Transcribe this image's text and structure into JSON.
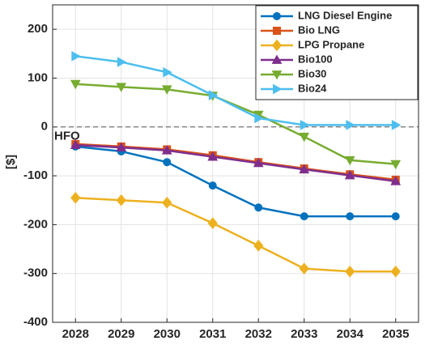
{
  "chart_data": {
    "type": "line",
    "y_label": "[$]",
    "annotation": "HFO",
    "reference_line": 0,
    "x": [
      2028,
      2029,
      2030,
      2031,
      2032,
      2033,
      2034,
      2035
    ],
    "xlim": [
      2027.5,
      2035.5
    ],
    "xticks": [
      2028,
      2029,
      2030,
      2031,
      2032,
      2033,
      2034,
      2035
    ],
    "ylim": [
      -400,
      250
    ],
    "yticks": [
      -400,
      -300,
      -200,
      -100,
      0,
      100,
      200
    ],
    "grid": true,
    "legend": "top-right",
    "series": [
      {
        "name": "LNG Diesel Engine",
        "color": "#0072BD",
        "marker": "circle",
        "values": [
          -40,
          -50,
          -72,
          -120,
          -165,
          -183,
          -183,
          -183
        ]
      },
      {
        "name": "Bio LNG",
        "color": "#D95319",
        "marker": "square",
        "values": [
          -35,
          -40,
          -46,
          -58,
          -72,
          -85,
          -97,
          -108
        ]
      },
      {
        "name": "LPG Propane",
        "color": "#EDB120",
        "marker": "diamond",
        "values": [
          -145,
          -150,
          -155,
          -197,
          -243,
          -290,
          -296,
          -296
        ]
      },
      {
        "name": "Bio100",
        "color": "#7E2F8E",
        "marker": "triangle-up",
        "values": [
          -37,
          -42,
          -48,
          -61,
          -74,
          -87,
          -99,
          -111
        ]
      },
      {
        "name": "Bio30",
        "color": "#77AC30",
        "marker": "triangle-down",
        "values": [
          88,
          82,
          77,
          64,
          25,
          -20,
          -68,
          -76
        ]
      },
      {
        "name": "Bio24",
        "color": "#4DBEEE",
        "marker": "triangle-right",
        "values": [
          145,
          133,
          112,
          65,
          18,
          4,
          4,
          4
        ]
      }
    ]
  }
}
